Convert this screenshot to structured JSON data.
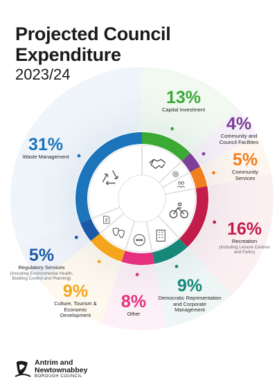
{
  "header": {
    "title": "Projected Council Expenditure",
    "year": "2023/24"
  },
  "chart_data": {
    "type": "pie",
    "title": "Projected Council Expenditure 2023/24",
    "unit": "%",
    "slices": [
      {
        "percent_label": "13%",
        "value": 13,
        "name": "Capital Investment",
        "sub": "",
        "color": "#3aaa35",
        "icon": "handshake-icon"
      },
      {
        "percent_label": "4%",
        "value": 4,
        "name": "Community and Council Facilities",
        "sub": "",
        "color": "#7b3f98",
        "icon": "facilities-icon"
      },
      {
        "percent_label": "5%",
        "value": 5,
        "name": "Community Services",
        "sub": "",
        "color": "#f07f1e",
        "icon": "community-icon"
      },
      {
        "percent_label": "16%",
        "value": 16,
        "name": "Recreation",
        "sub": "(Including Leisure Centres and Parks)",
        "color": "#c21d4a",
        "icon": "cycling-icon"
      },
      {
        "percent_label": "9%",
        "value": 9,
        "name": "Democratic Representation and Corporate Management",
        "sub": "",
        "color": "#17877a",
        "icon": "building-icon"
      },
      {
        "percent_label": "8%",
        "value": 8,
        "name": "Other",
        "sub": "",
        "color": "#e5307e",
        "icon": "more-icon"
      },
      {
        "percent_label": "9%",
        "value": 9,
        "name": "Culture, Tourism & Economic Development",
        "sub": "",
        "color": "#f5a51c",
        "icon": "theatre-masks-icon"
      },
      {
        "percent_label": "5%",
        "value": 5,
        "name": "Regulatory Services",
        "sub": "(Including Environmental Health, Building Control and Planning)",
        "color": "#1a5aa6",
        "icon": "document-icon"
      },
      {
        "percent_label": "31%",
        "value": 31,
        "name": "Waste Management",
        "sub": "",
        "color": "#1c74bb",
        "icon": "recycle-icon"
      }
    ]
  },
  "footer": {
    "logo_name_line1": "Antrim and",
    "logo_name_line2": "Newtownabbey",
    "logo_sub": "BOROUGH COUNCIL"
  }
}
